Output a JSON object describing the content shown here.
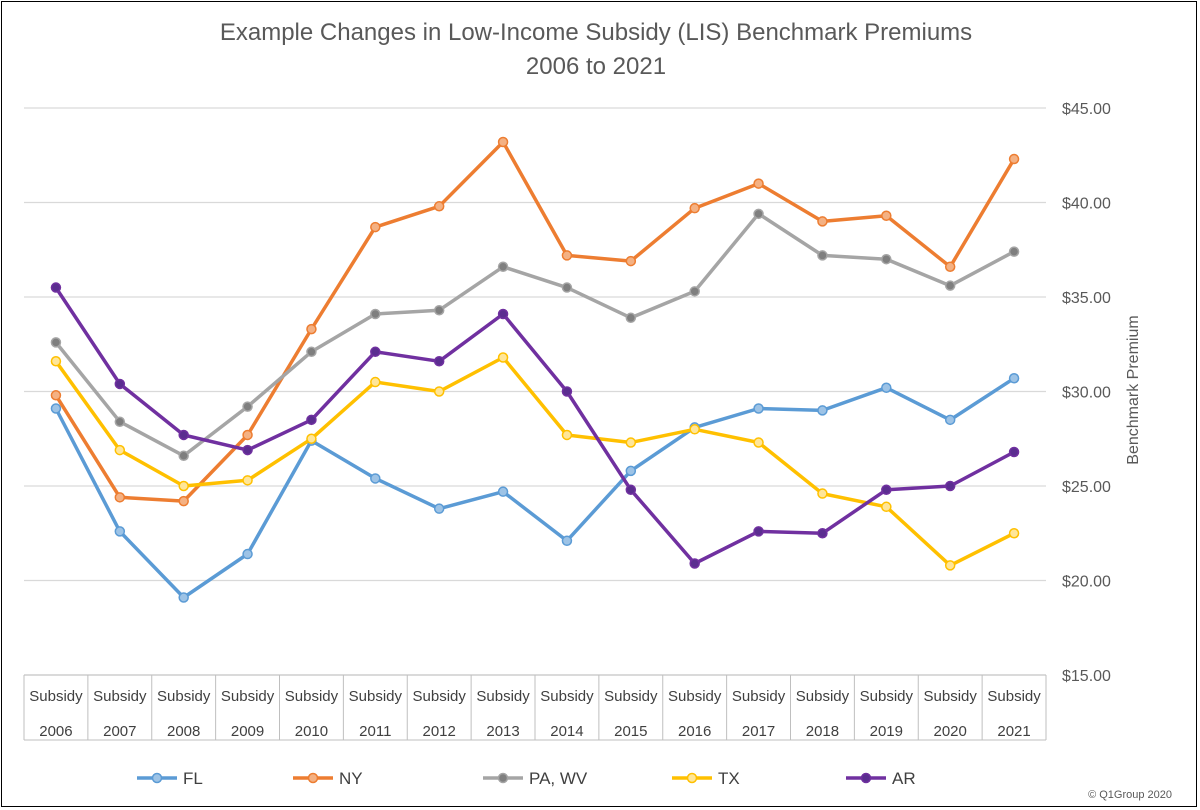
{
  "chart_data": {
    "type": "line",
    "title": "Example Changes in Low-Income Subsidy (LIS) Benchmark Premiums",
    "subtitle": "2006 to 2021",
    "ylabel": "Benchmark Premium",
    "ylim": [
      15,
      45
    ],
    "yticks": [
      "$15.00",
      "$20.00",
      "$25.00",
      "$30.00",
      "$35.00",
      "$40.00",
      "$45.00"
    ],
    "ytick_values": [
      15,
      20,
      25,
      30,
      35,
      40,
      45
    ],
    "y_axis_position": "right",
    "grid": true,
    "legend_position": "bottom",
    "category_top": "Subsidy",
    "categories": [
      "2006",
      "2007",
      "2008",
      "2009",
      "2010",
      "2011",
      "2012",
      "2013",
      "2014",
      "2015",
      "2016",
      "2017",
      "2018",
      "2019",
      "2020",
      "2021"
    ],
    "series": [
      {
        "name": "FL",
        "color": "#5B9BD5",
        "fill": "#9DC3E6",
        "values": [
          29.1,
          22.6,
          19.1,
          21.4,
          27.4,
          25.4,
          23.8,
          24.7,
          22.1,
          25.8,
          28.1,
          29.1,
          29.0,
          30.2,
          28.5,
          30.7
        ]
      },
      {
        "name": "NY",
        "color": "#ED7D31",
        "fill": "#F4B183",
        "values": [
          29.8,
          24.4,
          24.2,
          27.7,
          33.3,
          38.7,
          39.8,
          43.2,
          37.2,
          36.9,
          39.7,
          41.0,
          39.0,
          39.3,
          36.6,
          42.3
        ]
      },
      {
        "name": "PA, WV",
        "color": "#A5A5A5",
        "fill": "#7F7F7F",
        "values": [
          32.6,
          28.4,
          26.6,
          29.2,
          32.1,
          34.1,
          34.3,
          36.6,
          35.5,
          33.9,
          35.3,
          39.4,
          37.2,
          37.0,
          35.6,
          37.4
        ]
      },
      {
        "name": "TX",
        "color": "#FFC000",
        "fill": "#FFE699",
        "values": [
          31.6,
          26.9,
          25.0,
          25.3,
          27.5,
          30.5,
          30.0,
          31.8,
          27.7,
          27.3,
          28.0,
          27.3,
          24.6,
          23.9,
          20.8,
          22.5
        ]
      },
      {
        "name": "AR",
        "color": "#7030A0",
        "fill": "#5B2D90",
        "values": [
          35.5,
          30.4,
          27.7,
          26.9,
          28.5,
          32.1,
          31.6,
          34.1,
          30.0,
          24.8,
          20.9,
          22.6,
          22.5,
          24.8,
          25.0,
          26.8
        ]
      }
    ]
  },
  "copyright": "© Q1Group 2020"
}
